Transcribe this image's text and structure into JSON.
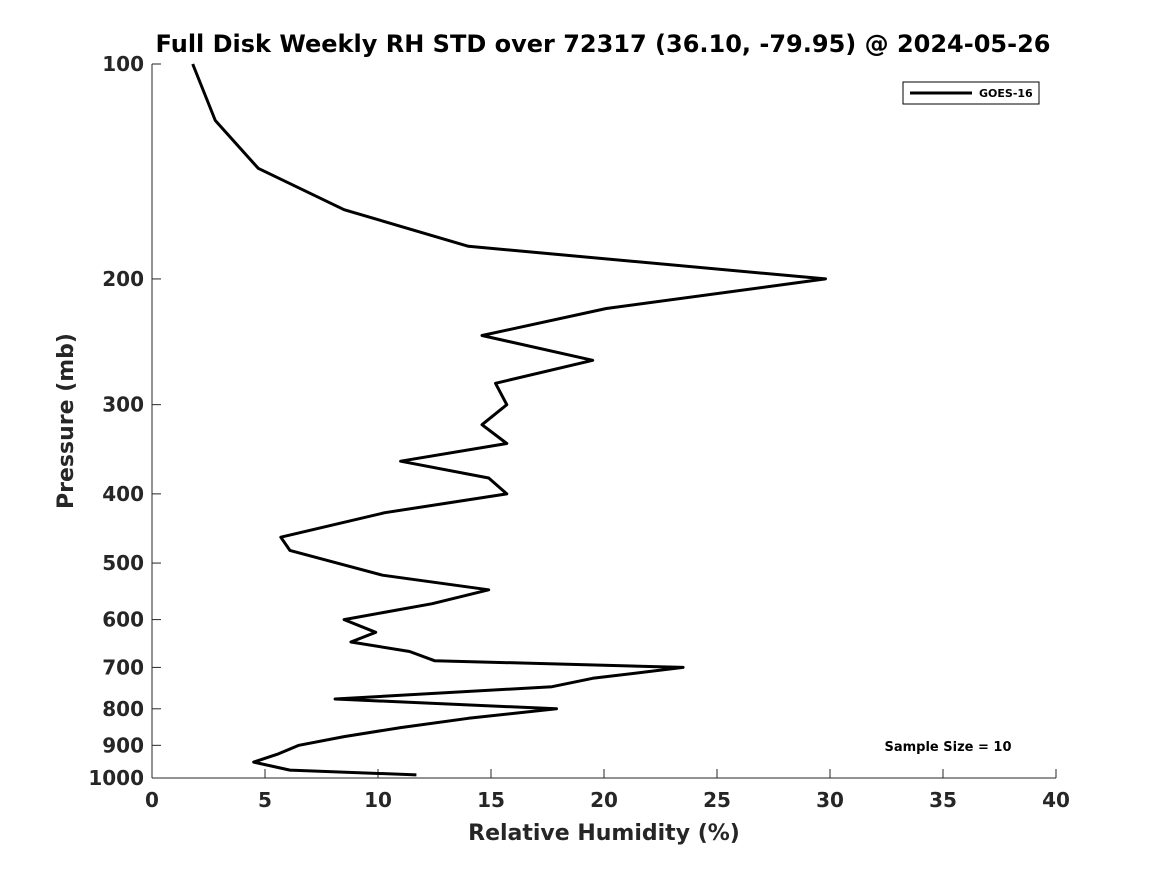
{
  "chart_data": {
    "type": "line",
    "title": "Full Disk Weekly RH STD over 72317 (36.10, -79.95) @ 2024-05-26",
    "xlabel": "Relative Humidity (%)",
    "ylabel": "Pressure (mb)",
    "xlim": [
      0,
      40
    ],
    "ylim": [
      100,
      1000
    ],
    "y_scale": "log",
    "y_reversed": true,
    "grid": false,
    "x_ticks": [
      0,
      5,
      10,
      15,
      20,
      25,
      30,
      35,
      40
    ],
    "y_ticks": [
      100,
      200,
      300,
      400,
      500,
      600,
      700,
      800,
      900,
      1000
    ],
    "legend": {
      "position": "top-right",
      "entries": [
        "GOES-16"
      ]
    },
    "annotation": "Sample Size = 10",
    "series": [
      {
        "name": "GOES-16",
        "color": "#000000",
        "points": [
          {
            "x": 1.8,
            "y": 100
          },
          {
            "x": 2.8,
            "y": 120
          },
          {
            "x": 4.7,
            "y": 140
          },
          {
            "x": 8.5,
            "y": 160
          },
          {
            "x": 14.0,
            "y": 180
          },
          {
            "x": 29.8,
            "y": 200
          },
          {
            "x": 20.1,
            "y": 220
          },
          {
            "x": 14.6,
            "y": 240
          },
          {
            "x": 19.5,
            "y": 260
          },
          {
            "x": 15.2,
            "y": 280
          },
          {
            "x": 15.7,
            "y": 300
          },
          {
            "x": 14.6,
            "y": 320
          },
          {
            "x": 15.7,
            "y": 340
          },
          {
            "x": 11.0,
            "y": 360
          },
          {
            "x": 14.9,
            "y": 380
          },
          {
            "x": 15.7,
            "y": 400
          },
          {
            "x": 10.3,
            "y": 425
          },
          {
            "x": 5.7,
            "y": 460
          },
          {
            "x": 6.1,
            "y": 480
          },
          {
            "x": 10.2,
            "y": 520
          },
          {
            "x": 14.9,
            "y": 545
          },
          {
            "x": 12.4,
            "y": 570
          },
          {
            "x": 8.5,
            "y": 600
          },
          {
            "x": 9.9,
            "y": 625
          },
          {
            "x": 8.8,
            "y": 645
          },
          {
            "x": 11.4,
            "y": 665
          },
          {
            "x": 12.5,
            "y": 685
          },
          {
            "x": 23.5,
            "y": 700
          },
          {
            "x": 19.5,
            "y": 725
          },
          {
            "x": 17.7,
            "y": 745
          },
          {
            "x": 8.1,
            "y": 775
          },
          {
            "x": 17.9,
            "y": 800
          },
          {
            "x": 14.0,
            "y": 825
          },
          {
            "x": 11.0,
            "y": 850
          },
          {
            "x": 8.5,
            "y": 875
          },
          {
            "x": 6.5,
            "y": 900
          },
          {
            "x": 5.6,
            "y": 925
          },
          {
            "x": 4.5,
            "y": 950
          },
          {
            "x": 6.1,
            "y": 975
          },
          {
            "x": 11.7,
            "y": 990
          }
        ]
      }
    ]
  }
}
